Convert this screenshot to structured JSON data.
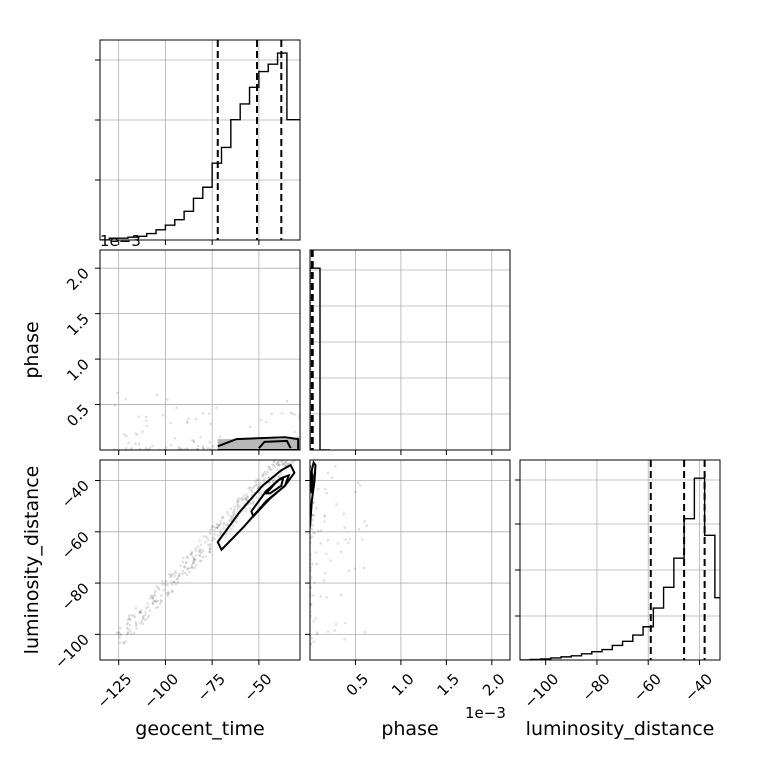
{
  "chart_data": {
    "type": "corner",
    "parameters": [
      "geocent_time",
      "phase",
      "luminosity_distance"
    ],
    "axis_labels": {
      "geocent_time": "geocent_time",
      "phase": "phase",
      "luminosity_distance": "luminosity_distance"
    },
    "ranges": {
      "geocent_time": [
        -135,
        -28
      ],
      "phase": [
        0.0,
        0.0022
      ],
      "luminosity_distance": [
        -110,
        -32
      ]
    },
    "ticks": {
      "geocent_time": [
        -125,
        -100,
        -75,
        -50
      ],
      "phase_x": [
        0.0005,
        0.001,
        0.0015,
        0.002
      ],
      "phase_y": [
        0.0005,
        0.001,
        0.0015,
        0.002
      ],
      "luminosity_distance": [
        -100,
        -80,
        -60,
        -40
      ]
    },
    "tick_labels": {
      "geocent_time": [
        "−125",
        "−100",
        "−75",
        "−50"
      ],
      "phase": [
        "0.5",
        "1.0",
        "1.5",
        "2.0"
      ],
      "luminosity_distance": [
        "−100",
        "−80",
        "−60",
        "−40"
      ]
    },
    "offset_text": "1e−3",
    "histograms": {
      "geocent_time": {
        "edges": [
          -135,
          -130,
          -125,
          -120,
          -115,
          -110,
          -105,
          -100,
          -95,
          -90,
          -85,
          -80,
          -75,
          -70,
          -65,
          -60,
          -55,
          -50,
          -45,
          -40,
          -35,
          -30,
          -28
        ],
        "counts": [
          0,
          2,
          2,
          3,
          4,
          7,
          11,
          16,
          22,
          31,
          45,
          57,
          83,
          100,
          130,
          147,
          165,
          182,
          190,
          202,
          130,
          130
        ]
      },
      "phase": {
        "edges": [
          0,
          0.00011,
          0.00022
        ],
        "counts": [
          240,
          0
        ]
      },
      "luminosity_distance": {
        "edges": [
          -110,
          -106,
          -102,
          -98,
          -94,
          -90,
          -86,
          -82,
          -78,
          -74,
          -70,
          -66,
          -62,
          -58,
          -54,
          -50,
          -46,
          -42,
          -38,
          -34,
          -32
        ],
        "counts": [
          0,
          0.5,
          1,
          2,
          3,
          4,
          6,
          8,
          10,
          14,
          18,
          24,
          32,
          50,
          70,
          98,
          136,
          175,
          120,
          60
        ]
      }
    },
    "quantiles": {
      "geocent_time": [
        -72,
        -51,
        -38
      ],
      "phase": [
        2e-05,
        3e-05
      ],
      "luminosity_distance": [
        -59,
        -46,
        -38
      ]
    },
    "contours": {
      "geocent_time_luminosity_distance": [
        [
          [
            -72,
            -64
          ],
          [
            -60,
            -52
          ],
          [
            -48,
            -42
          ],
          [
            -38,
            -36
          ],
          [
            -33,
            -34
          ],
          [
            -31,
            -37
          ],
          [
            -36,
            -42
          ],
          [
            -46,
            -48
          ],
          [
            -58,
            -58
          ],
          [
            -70,
            -67
          ],
          [
            -72,
            -64
          ]
        ],
        [
          [
            -54,
            -52
          ],
          [
            -46,
            -44
          ],
          [
            -38,
            -39
          ],
          [
            -34,
            -38
          ],
          [
            -36,
            -42
          ],
          [
            -44,
            -47
          ],
          [
            -53,
            -54
          ],
          [
            -54,
            -52
          ]
        ],
        [
          [
            -46,
            -45
          ],
          [
            -40,
            -40
          ],
          [
            -37,
            -39
          ],
          [
            -38,
            -42
          ],
          [
            -44,
            -45
          ],
          [
            -46,
            -45
          ]
        ]
      ],
      "geocent_time_phase": [
        [
          [
            -72,
            4e-05
          ],
          [
            -62,
            0.00012
          ],
          [
            -36,
            0.00014
          ],
          [
            -29,
            0.00012
          ],
          [
            -29,
            0.0
          ],
          [
            -72,
            0.0
          ]
        ],
        [
          [
            -50,
            2e-05
          ],
          [
            -47,
            9e-05
          ],
          [
            -35,
            0.0001
          ],
          [
            -33,
            2e-05
          ]
        ]
      ],
      "phase_luminosity_distance": [
        [
          [
            0.0,
            -58
          ],
          [
            2e-05,
            -48
          ],
          [
            5e-05,
            -40
          ],
          [
            6e-05,
            -34
          ],
          [
            4e-05,
            -33
          ],
          [
            2e-05,
            -36
          ],
          [
            0.0,
            -44
          ]
        ],
        [
          [
            2e-05,
            -45
          ],
          [
            3e-05,
            -38
          ],
          [
            2e-05,
            -37
          ],
          [
            1e-05,
            -41
          ],
          [
            2e-05,
            -45
          ]
        ]
      ]
    }
  }
}
